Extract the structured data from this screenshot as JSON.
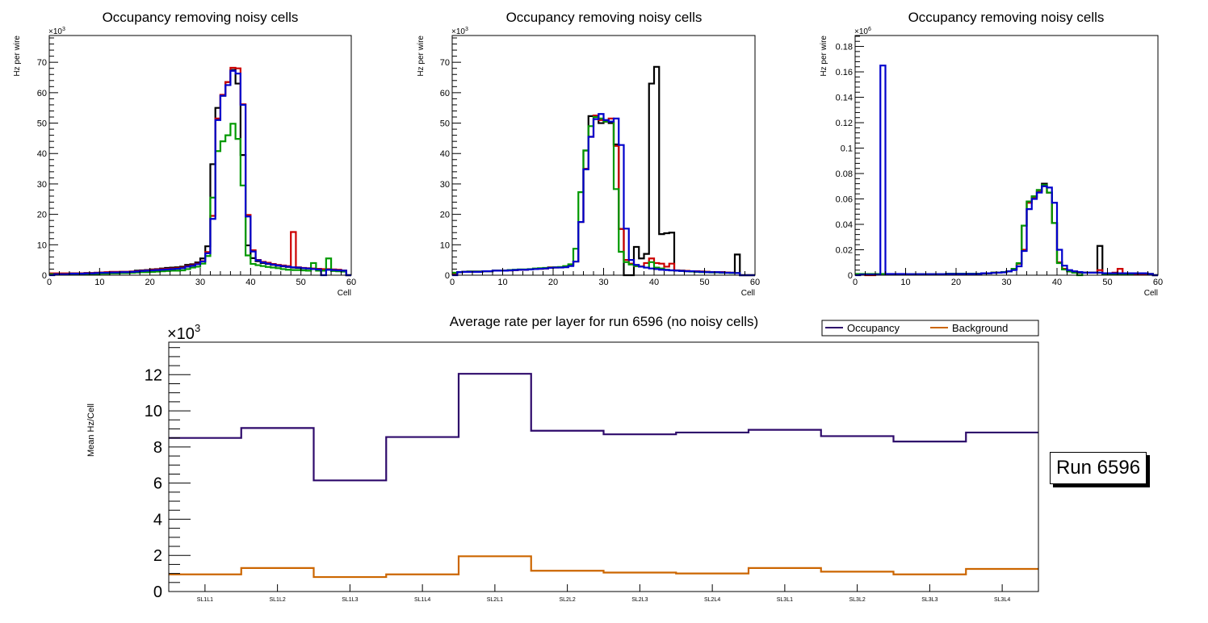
{
  "chart_data": [
    {
      "type": "line",
      "subtype": "step-histogram",
      "title": "Occupancy removing noisy cells",
      "xlabel": "Cell",
      "ylabel": "Hz per wire",
      "y_multiplier_label": "×10³",
      "y_multiplier_exp": "3",
      "xlim": [
        0,
        60
      ],
      "ylim": [
        0,
        78.8
      ],
      "x_ticks": [
        "0",
        "10",
        "20",
        "30",
        "40",
        "50",
        "60"
      ],
      "y_ticks": [
        "0",
        "10",
        "20",
        "30",
        "40",
        "50",
        "60",
        "70"
      ],
      "bin_edges_start": 0,
      "bin_width": 1,
      "series": [
        {
          "name": "black",
          "color": "#000000",
          "values": [
            0.5,
            0.5,
            0.5,
            0.5,
            0.6,
            0.6,
            0.6,
            0.7,
            0.7,
            0.8,
            0.9,
            0.9,
            1.0,
            1.0,
            1.1,
            1.1,
            1.2,
            1.5,
            1.6,
            1.7,
            1.9,
            2.0,
            2.2,
            2.4,
            2.5,
            2.6,
            2.8,
            3.4,
            3.6,
            4.2,
            5.5,
            9.5,
            36.5,
            55.0,
            59.0,
            63.5,
            67.5,
            63.0,
            39.5,
            9.8,
            5.6,
            4.6,
            4.0,
            3.7,
            3.4,
            3.1,
            2.9,
            2.7,
            2.5,
            2.4,
            2.3,
            2.2,
            2.0,
            2.0,
            1.9,
            1.8,
            1.7,
            1.6,
            1.5,
            0.0
          ]
        },
        {
          "name": "red",
          "color": "#cc0000",
          "values": [
            0.6,
            0.6,
            0.6,
            0.6,
            0.6,
            0.6,
            0.6,
            0.7,
            0.7,
            0.8,
            0.9,
            1.0,
            1.1,
            1.1,
            1.1,
            1.1,
            1.2,
            1.3,
            1.5,
            1.6,
            1.8,
            1.9,
            2.0,
            2.1,
            2.2,
            2.3,
            2.5,
            3.0,
            3.3,
            3.8,
            4.6,
            7.6,
            19.5,
            51.5,
            59.3,
            63.5,
            68.2,
            68.0,
            56.2,
            19.8,
            8.2,
            5.0,
            4.4,
            4.1,
            3.7,
            3.4,
            3.2,
            3.0,
            14.2,
            2.6,
            2.4,
            2.3,
            2.2,
            2.1,
            2.0,
            2.0,
            1.9,
            1.8,
            1.5,
            0.0
          ]
        },
        {
          "name": "green",
          "color": "#009900",
          "values": [
            0.3,
            0.3,
            0.3,
            0.3,
            0.3,
            0.3,
            0.3,
            0.4,
            0.4,
            0.4,
            0.5,
            0.5,
            0.6,
            0.6,
            0.7,
            0.7,
            0.8,
            0.9,
            1.0,
            1.0,
            1.1,
            1.2,
            1.3,
            1.4,
            1.5,
            1.5,
            1.6,
            2.0,
            2.5,
            2.8,
            3.8,
            6.3,
            25.5,
            40.8,
            44.0,
            46.0,
            49.8,
            44.8,
            29.5,
            6.5,
            3.7,
            3.3,
            3.0,
            2.7,
            2.5,
            2.3,
            2.0,
            1.8,
            1.7,
            1.7,
            1.6,
            1.5,
            4.0,
            1.5,
            1.5,
            5.5,
            1.4,
            1.3,
            1.2,
            0.0
          ]
        },
        {
          "name": "blue",
          "color": "#0000cc",
          "values": [
            0.0,
            0.3,
            0.3,
            0.3,
            0.5,
            0.5,
            0.5,
            0.6,
            0.6,
            0.7,
            0.8,
            0.8,
            0.9,
            0.9,
            1.0,
            1.0,
            1.1,
            1.2,
            1.4,
            1.5,
            1.6,
            1.7,
            1.8,
            1.9,
            2.0,
            2.1,
            2.3,
            2.8,
            3.1,
            3.6,
            4.5,
            7.2,
            18.5,
            51.0,
            59.0,
            62.5,
            67.2,
            66.3,
            56.0,
            19.3,
            7.8,
            4.9,
            4.2,
            3.8,
            3.5,
            3.2,
            3.0,
            2.8,
            2.6,
            2.5,
            2.3,
            2.2,
            2.0,
            1.9,
            0.0,
            1.8,
            1.7,
            1.6,
            1.5,
            0.0
          ]
        }
      ]
    },
    {
      "type": "line",
      "subtype": "step-histogram",
      "title": "Occupancy removing noisy cells",
      "xlabel": "Cell",
      "ylabel": "Hz per wire",
      "y_multiplier_label": "×10³",
      "y_multiplier_exp": "3",
      "xlim": [
        0,
        60
      ],
      "ylim": [
        0,
        78.8
      ],
      "x_ticks": [
        "0",
        "10",
        "20",
        "30",
        "40",
        "50",
        "60"
      ],
      "y_ticks": [
        "0",
        "10",
        "20",
        "30",
        "40",
        "50",
        "60",
        "70"
      ],
      "bin_edges_start": 0,
      "bin_width": 1,
      "series": [
        {
          "name": "black",
          "color": "#000000",
          "values": [
            0.5,
            1.0,
            1.1,
            1.2,
            1.2,
            1.2,
            1.3,
            1.3,
            1.5,
            1.5,
            1.5,
            1.6,
            1.7,
            1.8,
            1.8,
            1.9,
            2.0,
            2.1,
            2.2,
            2.4,
            2.5,
            2.6,
            2.8,
            3.2,
            4.5,
            17.5,
            41.0,
            52.3,
            52.5,
            50.0,
            50.5,
            50.0,
            43.0,
            15.2,
            0.0,
            0.0,
            9.3,
            5.5,
            7.0,
            63.0,
            68.5,
            13.5,
            13.8,
            14.0,
            1.5,
            1.5,
            1.4,
            1.3,
            1.2,
            1.2,
            1.1,
            1.0,
            1.0,
            1.0,
            0.9,
            0.8,
            6.8,
            0.0,
            0.0,
            0.0
          ]
        },
        {
          "name": "red",
          "color": "#cc0000",
          "values": [
            0.5,
            1.0,
            1.1,
            1.2,
            1.2,
            1.2,
            1.3,
            1.3,
            1.5,
            1.5,
            1.5,
            1.6,
            1.7,
            1.8,
            1.8,
            1.9,
            2.0,
            2.1,
            2.2,
            2.6,
            2.6,
            2.6,
            2.8,
            3.2,
            4.5,
            17.5,
            35.0,
            45.5,
            52.5,
            51.0,
            50.5,
            51.5,
            42.5,
            15.2,
            5.0,
            3.8,
            3.0,
            2.9,
            4.0,
            5.5,
            4.0,
            3.8,
            2.8,
            3.8,
            1.6,
            1.5,
            1.4,
            1.3,
            1.3,
            1.2,
            1.1,
            1.0,
            1.0,
            1.0,
            0.9,
            0.8,
            0.7,
            0.0,
            0.0,
            0.0
          ]
        },
        {
          "name": "green",
          "color": "#009900",
          "values": [
            0.8,
            1.0,
            1.1,
            1.2,
            1.2,
            1.2,
            1.3,
            1.3,
            1.5,
            1.5,
            1.5,
            1.7,
            1.8,
            1.9,
            1.9,
            2.0,
            2.2,
            2.3,
            2.4,
            2.5,
            2.6,
            2.7,
            3.0,
            3.6,
            8.7,
            27.3,
            41.0,
            49.0,
            52.0,
            51.5,
            50.5,
            50.5,
            28.3,
            7.7,
            4.3,
            3.5,
            3.0,
            2.8,
            2.5,
            4.3,
            2.5,
            2.2,
            1.8,
            1.6,
            1.5,
            1.4,
            1.3,
            1.2,
            1.1,
            1.0,
            1.0,
            0.9,
            0.9,
            0.8,
            0.8,
            0.7,
            0.7,
            0.0,
            0.0,
            0.0
          ]
        },
        {
          "name": "blue",
          "color": "#0000cc",
          "values": [
            0.0,
            1.0,
            1.1,
            1.1,
            1.1,
            1.1,
            1.3,
            1.3,
            1.5,
            1.5,
            1.5,
            1.6,
            1.7,
            1.8,
            1.8,
            1.9,
            2.0,
            2.1,
            2.2,
            2.4,
            2.5,
            2.5,
            2.6,
            3.0,
            4.5,
            17.5,
            34.8,
            45.5,
            51.3,
            53.0,
            51.0,
            50.5,
            51.5,
            42.8,
            15.3,
            5.0,
            3.4,
            2.8,
            2.5,
            2.2,
            2.0,
            1.8,
            1.7,
            1.6,
            1.5,
            1.4,
            1.3,
            1.3,
            1.2,
            1.1,
            1.0,
            1.0,
            1.0,
            0.9,
            0.8,
            0.8,
            0.7,
            0.0,
            0.0,
            0.0
          ]
        }
      ]
    },
    {
      "type": "line",
      "subtype": "step-histogram",
      "title": "Occupancy removing noisy cells",
      "xlabel": "Cell",
      "ylabel": "Hz per wire",
      "y_multiplier_label": "×10⁶",
      "y_multiplier_exp": "6",
      "xlim": [
        0,
        60
      ],
      "ylim": [
        0,
        0.1886
      ],
      "x_ticks": [
        "0",
        "10",
        "20",
        "30",
        "40",
        "50",
        "60"
      ],
      "y_ticks": [
        "0",
        "0.02",
        "0.04",
        "0.06",
        "0.08",
        "0.1",
        "0.12",
        "0.14",
        "0.16",
        "0.18"
      ],
      "bin_edges_start": 0,
      "bin_width": 1,
      "series": [
        {
          "name": "black",
          "color": "#000000",
          "values": [
            0.0005,
            0.0005,
            0.0005,
            0.0005,
            0.0005,
            0.0005,
            0.0008,
            0.0008,
            0.0008,
            0.0008,
            0.0008,
            0.0008,
            0.0008,
            0.0008,
            0.0008,
            0.0008,
            0.0008,
            0.0008,
            0.001,
            0.001,
            0.001,
            0.001,
            0.001,
            0.001,
            0.001,
            0.0015,
            0.0015,
            0.002,
            0.002,
            0.0025,
            0.003,
            0.0045,
            0.009,
            0.039,
            0.058,
            0.062,
            0.067,
            0.072,
            0.065,
            0.041,
            0.01,
            0.005,
            0.003,
            0.0025,
            0.002,
            0.002,
            0.002,
            0.002,
            0.023,
            0.001,
            0.001,
            0.001,
            0.001,
            0.001,
            0.001,
            0.001,
            0.001,
            0.001,
            0.001,
            0.0
          ]
        },
        {
          "name": "red",
          "color": "#cc0000",
          "values": [
            0.0005,
            0.0005,
            -0.0005,
            -0.0005,
            0.0005,
            0.0005,
            0.0008,
            0.0008,
            0.0008,
            0.0008,
            0.0008,
            0.0008,
            0.0008,
            0.0008,
            0.0008,
            0.0008,
            0.0008,
            0.0008,
            0.001,
            0.001,
            0.001,
            0.001,
            0.001,
            0.001,
            0.001,
            0.0015,
            0.0015,
            0.002,
            0.002,
            0.0025,
            0.003,
            0.0045,
            0.009,
            0.02,
            0.057,
            0.061,
            0.066,
            0.07,
            0.065,
            0.041,
            0.01,
            0.005,
            0.0035,
            0.003,
            0.0025,
            0.002,
            0.002,
            0.002,
            0.004,
            0.001,
            0.001,
            0.002,
            0.005,
            0.001,
            0.001,
            0.001,
            0.001,
            0.001,
            0.001,
            0.0
          ]
        },
        {
          "name": "green",
          "color": "#009900",
          "values": [
            0.001,
            0.001,
            0.001,
            0.001,
            0.001,
            0.001,
            0.0008,
            0.0008,
            0.0008,
            0.0008,
            0.0008,
            0.0008,
            0.0008,
            0.0008,
            0.0008,
            0.0008,
            0.0008,
            0.0008,
            0.0012,
            0.0012,
            0.0012,
            0.0012,
            0.0012,
            0.0012,
            0.0012,
            0.0015,
            0.0015,
            0.002,
            0.002,
            0.0025,
            0.003,
            0.005,
            0.0095,
            0.039,
            0.058,
            0.062,
            0.067,
            0.071,
            0.065,
            0.041,
            0.0095,
            0.0045,
            0.003,
            0.002,
            -0.001,
            0.002,
            0.002,
            0.002,
            0.002,
            0.001,
            0.001,
            0.001,
            0.001,
            0.001,
            0.001,
            0.0015,
            0.0015,
            0.0015,
            0.001,
            0.0
          ]
        },
        {
          "name": "blue",
          "color": "#0000cc",
          "values": [
            0.0,
            0.0005,
            0.0005,
            0.0005,
            0.0005,
            0.165,
            0.001,
            0.001,
            0.001,
            0.001,
            0.0008,
            0.0008,
            0.0008,
            0.0008,
            0.0008,
            0.0008,
            0.0008,
            0.0008,
            0.001,
            0.001,
            0.001,
            0.001,
            0.001,
            0.001,
            0.001,
            0.0015,
            0.0015,
            0.0018,
            0.002,
            0.0022,
            0.003,
            0.004,
            0.007,
            0.019,
            0.052,
            0.06,
            0.065,
            0.07,
            0.069,
            0.057,
            0.02,
            0.0075,
            0.004,
            0.003,
            0.0025,
            0.002,
            0.002,
            0.002,
            0.002,
            0.0015,
            0.0015,
            0.0015,
            0.0015,
            0.0015,
            0.0015,
            0.0015,
            0.0015,
            0.0015,
            0.001,
            0.0
          ]
        }
      ]
    },
    {
      "type": "line",
      "subtype": "step-histogram",
      "title": "Average rate per layer for run 6596 (no noisy cells)",
      "xlabel": "",
      "ylabel": "Mean Hz/Cell",
      "y_multiplier_label": "×10³",
      "y_multiplier_exp": "3",
      "ylim": [
        0,
        13.8
      ],
      "categories": [
        "SL1L1",
        "SL1L2",
        "SL1L3",
        "SL1L4",
        "SL2L1",
        "SL2L2",
        "SL2L3",
        "SL2L4",
        "SL3L1",
        "SL3L2",
        "SL3L3",
        "SL3L4"
      ],
      "y_ticks": [
        "0",
        "2",
        "4",
        "6",
        "8",
        "10",
        "12"
      ],
      "legend": {
        "position": "top-right",
        "entries": [
          "Occupancy",
          "Background"
        ]
      },
      "series": [
        {
          "name": "Occupancy",
          "color": "#2e0a6b",
          "values": [
            8.5,
            9.05,
            6.15,
            8.55,
            12.05,
            8.9,
            8.7,
            8.8,
            8.95,
            8.6,
            8.3,
            8.8
          ]
        },
        {
          "name": "Background",
          "color": "#cc6600",
          "values": [
            0.95,
            1.3,
            0.8,
            0.95,
            1.95,
            1.15,
            1.05,
            1.0,
            1.3,
            1.1,
            0.95,
            1.25
          ]
        }
      ]
    }
  ],
  "annotation": {
    "run_label": "Run 6596"
  }
}
